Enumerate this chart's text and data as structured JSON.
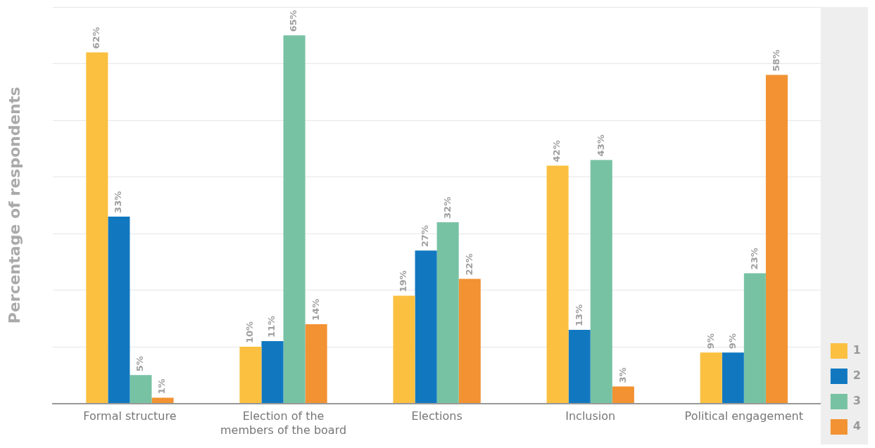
{
  "chart_data": {
    "type": "bar",
    "ylabel": "Percentage of respondents",
    "categories": [
      "Formal structure",
      "Election of the members of the board",
      "Elections",
      "Inclusion",
      "Political engagement"
    ],
    "series": [
      {
        "name": "1",
        "color": "#fbc040",
        "values": [
          62,
          10,
          19,
          42,
          9
        ],
        "value_labels": [
          "62%",
          "10%",
          "19%",
          "42%",
          "9%"
        ]
      },
      {
        "name": "2",
        "color": "#1178c0",
        "values": [
          33,
          11,
          27,
          13,
          9
        ],
        "value_labels": [
          "33%",
          "11%",
          "27%",
          "13%",
          "9%"
        ]
      },
      {
        "name": "3",
        "color": "#78c2a4",
        "values": [
          5,
          65,
          32,
          43,
          23
        ],
        "value_labels": [
          "5%",
          "65%",
          "32%",
          "43%",
          "23%"
        ]
      },
      {
        "name": "4",
        "color": "#f29232",
        "values": [
          1,
          14,
          22,
          3,
          58
        ],
        "value_labels": [
          "1%",
          "14%",
          "22%",
          "3%",
          "58%"
        ]
      }
    ],
    "tick_labels": "x",
    "grid": "y",
    "legend": "bottom right"
  }
}
